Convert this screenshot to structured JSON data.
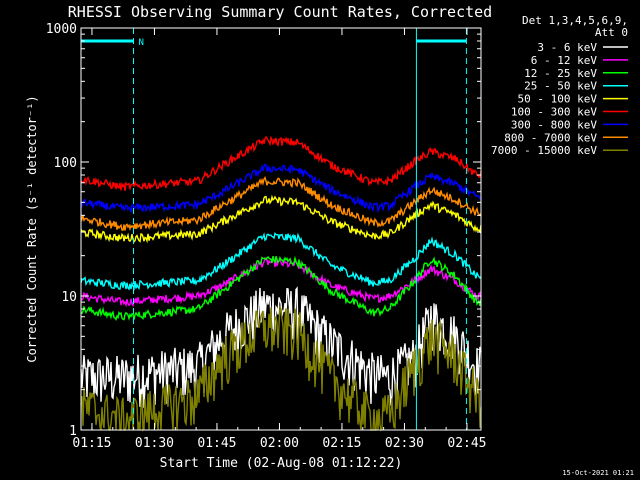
{
  "chart_data": {
    "type": "line",
    "title": "RHESSI Observing Summary Count Rates, Corrected",
    "xlabel": "Start Time (02-Aug-08 01:12:22)",
    "ylabel": "Corrected Count Rate (s⁻¹ detector⁻¹)",
    "x_unit": "minutes after 01:12:22",
    "xlim": [
      0,
      96
    ],
    "ylim": [
      1,
      1000
    ],
    "yscale": "log",
    "x_ticks": [
      {
        "t": 2.63,
        "label": "01:15"
      },
      {
        "t": 17.63,
        "label": "01:30"
      },
      {
        "t": 32.63,
        "label": "01:45"
      },
      {
        "t": 47.63,
        "label": "02:00"
      },
      {
        "t": 62.63,
        "label": "02:15"
      },
      {
        "t": 77.63,
        "label": "02:30"
      },
      {
        "t": 92.63,
        "label": "02:45"
      }
    ],
    "y_ticks": [
      {
        "v": 1,
        "label": "1"
      },
      {
        "v": 10,
        "label": "10"
      },
      {
        "v": 100,
        "label": "100"
      },
      {
        "v": 1000,
        "label": "1000"
      }
    ],
    "legend": {
      "header": [
        "Det 1,3,4,5,6,9,",
        "Att 0"
      ],
      "placement": "right"
    },
    "markers": {
      "solid_lines": [
        0,
        80.5
      ],
      "dashed_lines": [
        12.6,
        92.5
      ],
      "bars": [
        {
          "t0": 0,
          "t1": 12.6,
          "value": 800,
          "label": "N"
        },
        {
          "t0": 80.5,
          "t1": 92.5,
          "value": 800,
          "label": ""
        }
      ],
      "color": "#00ffff"
    },
    "series": [
      {
        "name": "3 - 6 keV",
        "color": "#ffffff",
        "t": [
          0,
          10,
          28,
          34,
          44,
          52,
          60,
          70,
          74,
          80,
          84,
          90,
          95
        ],
        "values": [
          2.5,
          2.5,
          3,
          5,
          8.5,
          8,
          4.5,
          2.6,
          2.5,
          3.5,
          7,
          5,
          3
        ]
      },
      {
        "name": "6 - 12 keV",
        "color": "#ff00ff",
        "t": [
          0,
          10,
          28,
          34,
          44,
          52,
          60,
          70,
          74,
          80,
          84,
          90,
          95
        ],
        "values": [
          10,
          9,
          10,
          12,
          18,
          17,
          12,
          9.5,
          10,
          13,
          16,
          13,
          10
        ]
      },
      {
        "name": "12 - 25 keV",
        "color": "#00ff00",
        "t": [
          0,
          10,
          28,
          34,
          44,
          52,
          60,
          70,
          74,
          80,
          84,
          90,
          95
        ],
        "values": [
          8,
          7,
          8,
          11,
          19,
          18,
          11,
          7.5,
          8,
          13,
          19,
          14,
          9
        ]
      },
      {
        "name": "25 - 50 keV",
        "color": "#00ffff",
        "t": [
          0,
          10,
          28,
          34,
          44,
          52,
          60,
          70,
          74,
          80,
          84,
          90,
          95
        ],
        "values": [
          13,
          12,
          13,
          17,
          28,
          27,
          17,
          12.5,
          13,
          19,
          26,
          20,
          14
        ]
      },
      {
        "name": "50 - 100 keV",
        "color": "#ffff00",
        "t": [
          0,
          10,
          28,
          34,
          44,
          52,
          60,
          70,
          74,
          80,
          84,
          90,
          95
        ],
        "values": [
          30,
          27,
          29,
          36,
          52,
          50,
          36,
          28,
          29,
          40,
          48,
          40,
          32
        ]
      },
      {
        "name": "100 - 300 keV",
        "color": "#ff0000",
        "t": [
          0,
          10,
          28,
          34,
          44,
          52,
          60,
          70,
          74,
          80,
          84,
          90,
          95
        ],
        "values": [
          75,
          65,
          72,
          95,
          145,
          140,
          95,
          70,
          72,
          100,
          120,
          105,
          80
        ]
      },
      {
        "name": "300 - 800 keV",
        "color": "#0000ff",
        "t": [
          0,
          10,
          28,
          34,
          44,
          52,
          60,
          70,
          74,
          80,
          84,
          90,
          95
        ],
        "values": [
          50,
          45,
          48,
          60,
          90,
          88,
          62,
          46,
          47,
          65,
          78,
          68,
          55
        ]
      },
      {
        "name": "800 - 7000 keV",
        "color": "#ff8c00",
        "t": [
          0,
          10,
          28,
          34,
          44,
          52,
          60,
          70,
          74,
          80,
          84,
          90,
          95
        ],
        "values": [
          38,
          33,
          37,
          48,
          72,
          70,
          48,
          35,
          36,
          50,
          62,
          52,
          42
        ]
      },
      {
        "name": "7000 - 15000 keV",
        "color": "#808000",
        "t": [
          0,
          10,
          28,
          34,
          44,
          52,
          60,
          70,
          74,
          80,
          84,
          90,
          95
        ],
        "values": [
          1.5,
          1.2,
          1.8,
          3.5,
          6,
          5.5,
          2.5,
          1.2,
          1.3,
          3,
          5,
          3.5,
          1.8
        ]
      }
    ]
  },
  "footer": {
    "timestamp": "15-Oct-2021 01:21"
  }
}
